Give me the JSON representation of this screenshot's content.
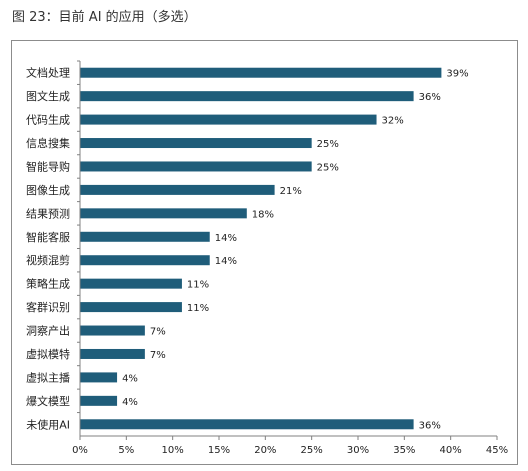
{
  "figure_title": "图 23：目前 AI 的应用（多选）",
  "colors": {
    "bar": "#1f5d7a",
    "axis": "#808080",
    "frame": "#8c8c8c"
  },
  "chart_data": {
    "type": "bar",
    "orientation": "horizontal",
    "title": "",
    "xlabel": "",
    "ylabel": "",
    "categories": [
      "文档处理",
      "图文生成",
      "代码生成",
      "信息搜集",
      "智能导购",
      "图像生成",
      "结果预测",
      "智能客服",
      "视频混剪",
      "策略生成",
      "客群识别",
      "洞察产出",
      "虚拟模特",
      "虚拟主播",
      "爆文模型",
      "未使用AI"
    ],
    "values": [
      39,
      36,
      32,
      25,
      25,
      21,
      18,
      14,
      14,
      11,
      11,
      7,
      7,
      4,
      4,
      36
    ],
    "value_labels": [
      "39%",
      "36%",
      "32%",
      "25%",
      "25%",
      "21%",
      "18%",
      "14%",
      "14%",
      "11%",
      "11%",
      "7%",
      "7%",
      "4%",
      "4%",
      "36%"
    ],
    "xlim": [
      0,
      45
    ],
    "xticks": [
      0,
      5,
      10,
      15,
      20,
      25,
      30,
      35,
      40,
      45
    ],
    "xtick_labels": [
      "0%",
      "5%",
      "10%",
      "15%",
      "20%",
      "25%",
      "30%",
      "35%",
      "40%",
      "45%"
    ],
    "grid": false,
    "legend": "none"
  }
}
